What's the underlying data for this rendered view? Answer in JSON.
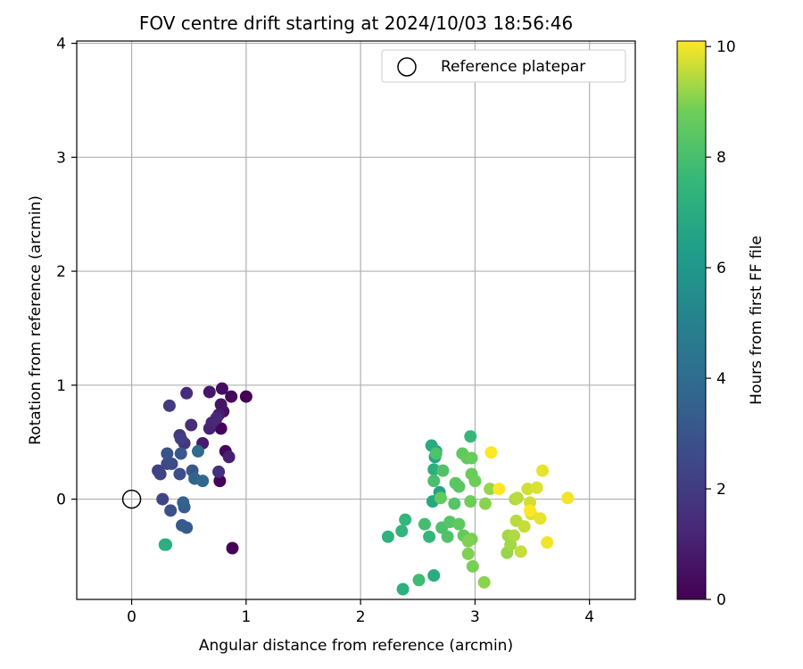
{
  "chart_data": {
    "type": "scatter",
    "title": "FOV centre drift starting at 2024/10/03 18:56:46",
    "xlabel": "Angular distance from reference (arcmin)",
    "ylabel": "Rotation from reference (arcmin)",
    "xlim": [
      -0.48,
      4.4
    ],
    "ylim": [
      -0.88,
      4.02
    ],
    "xticks": [
      0,
      1,
      2,
      3,
      4
    ],
    "yticks": [
      0,
      1,
      2,
      3,
      4
    ],
    "grid": true,
    "legend": {
      "placement": "top-right",
      "entries": [
        "Reference platepar"
      ]
    },
    "reference_point": {
      "name": "Reference platepar",
      "x": 0,
      "y": 0
    },
    "colorbar": {
      "label": "Hours from first FF file",
      "colormap": "viridis",
      "range": [
        0,
        10.1
      ],
      "ticks": [
        0,
        2,
        4,
        6,
        8,
        10
      ]
    },
    "points": [
      {
        "x": 1.0,
        "y": 0.9,
        "h": 0.0
      },
      {
        "x": 0.88,
        "y": -0.43,
        "h": 0.05
      },
      {
        "x": 0.77,
        "y": 0.16,
        "h": 0.1
      },
      {
        "x": 0.78,
        "y": 0.62,
        "h": 0.15
      },
      {
        "x": 0.82,
        "y": 0.42,
        "h": 0.2
      },
      {
        "x": 0.87,
        "y": 0.9,
        "h": 0.25
      },
      {
        "x": 0.79,
        "y": 0.97,
        "h": 0.4
      },
      {
        "x": 0.8,
        "y": 0.77,
        "h": 0.5
      },
      {
        "x": 0.78,
        "y": 0.83,
        "h": 0.6
      },
      {
        "x": 0.68,
        "y": 0.94,
        "h": 0.7
      },
      {
        "x": 0.62,
        "y": 0.49,
        "h": 0.8
      },
      {
        "x": 0.76,
        "y": 0.74,
        "h": 0.9
      },
      {
        "x": 0.85,
        "y": 0.37,
        "h": 1.0
      },
      {
        "x": 0.68,
        "y": 0.62,
        "h": 1.1
      },
      {
        "x": 0.7,
        "y": 0.67,
        "h": 1.2
      },
      {
        "x": 0.74,
        "y": 0.71,
        "h": 1.3
      },
      {
        "x": 0.48,
        "y": 0.93,
        "h": 1.4
      },
      {
        "x": 0.52,
        "y": 0.65,
        "h": 1.5
      },
      {
        "x": 0.76,
        "y": 0.24,
        "h": 1.6
      },
      {
        "x": 0.46,
        "y": 0.49,
        "h": 1.8
      },
      {
        "x": 0.42,
        "y": 0.56,
        "h": 1.9
      },
      {
        "x": 0.33,
        "y": 0.82,
        "h": 2.0
      },
      {
        "x": 0.43,
        "y": 0.53,
        "h": 2.1
      },
      {
        "x": 0.23,
        "y": 0.25,
        "h": 2.2
      },
      {
        "x": 0.25,
        "y": 0.22,
        "h": 2.3
      },
      {
        "x": 0.27,
        "y": 0.0,
        "h": 2.4
      },
      {
        "x": 0.31,
        "y": 0.31,
        "h": 2.5
      },
      {
        "x": 0.35,
        "y": 0.31,
        "h": 2.6
      },
      {
        "x": 0.42,
        "y": 0.22,
        "h": 2.7
      },
      {
        "x": 0.34,
        "y": -0.1,
        "h": 2.8
      },
      {
        "x": 0.31,
        "y": 0.4,
        "h": 2.9
      },
      {
        "x": 0.53,
        "y": 0.25,
        "h": 3.0
      },
      {
        "x": 0.43,
        "y": 0.4,
        "h": 3.1
      },
      {
        "x": 0.44,
        "y": -0.23,
        "h": 3.2
      },
      {
        "x": 0.48,
        "y": -0.25,
        "h": 3.3
      },
      {
        "x": 0.46,
        "y": -0.07,
        "h": 3.4
      },
      {
        "x": 0.45,
        "y": -0.03,
        "h": 3.5
      },
      {
        "x": 0.55,
        "y": 0.18,
        "h": 3.6
      },
      {
        "x": 0.62,
        "y": 0.16,
        "h": 3.8
      },
      {
        "x": 0.58,
        "y": 0.42,
        "h": 4.0
      },
      {
        "x": 0.29,
        "y": -0.4,
        "h": 7.0
      },
      {
        "x": 0.3,
        "y": -0.4,
        "h": 7.1
      },
      {
        "x": 2.66,
        "y": 0.42,
        "h": 6.4
      },
      {
        "x": 2.69,
        "y": 0.06,
        "h": 6.5
      },
      {
        "x": 2.65,
        "y": 0.37,
        "h": 6.6
      },
      {
        "x": 2.62,
        "y": 0.47,
        "h": 6.9
      },
      {
        "x": 2.63,
        "y": -0.02,
        "h": 6.8
      },
      {
        "x": 2.64,
        "y": -0.67,
        "h": 7.0
      },
      {
        "x": 2.64,
        "y": 0.26,
        "h": 7.1
      },
      {
        "x": 2.37,
        "y": -0.79,
        "h": 7.2
      },
      {
        "x": 2.24,
        "y": -0.33,
        "h": 7.3
      },
      {
        "x": 2.36,
        "y": -0.28,
        "h": 7.4
      },
      {
        "x": 2.39,
        "y": -0.18,
        "h": 7.5
      },
      {
        "x": 2.6,
        "y": -0.33,
        "h": 7.5
      },
      {
        "x": 2.96,
        "y": 0.55,
        "h": 7.6
      },
      {
        "x": 2.51,
        "y": -0.71,
        "h": 7.8
      },
      {
        "x": 2.56,
        "y": -0.22,
        "h": 7.9
      },
      {
        "x": 2.64,
        "y": 0.16,
        "h": 8.0
      },
      {
        "x": 2.66,
        "y": 0.4,
        "h": 8.1
      },
      {
        "x": 2.71,
        "y": -0.25,
        "h": 8.1
      },
      {
        "x": 2.72,
        "y": 0.25,
        "h": 8.2
      },
      {
        "x": 2.76,
        "y": -0.33,
        "h": 8.2
      },
      {
        "x": 2.78,
        "y": -0.2,
        "h": 8.3
      },
      {
        "x": 2.82,
        "y": -0.04,
        "h": 8.3
      },
      {
        "x": 2.83,
        "y": 0.14,
        "h": 8.4
      },
      {
        "x": 2.86,
        "y": 0.11,
        "h": 8.4
      },
      {
        "x": 2.86,
        "y": -0.22,
        "h": 8.5
      },
      {
        "x": 2.89,
        "y": 0.4,
        "h": 8.5
      },
      {
        "x": 2.9,
        "y": -0.32,
        "h": 8.6
      },
      {
        "x": 2.93,
        "y": 0.36,
        "h": 8.6
      },
      {
        "x": 2.97,
        "y": 0.36,
        "h": 8.7
      },
      {
        "x": 2.97,
        "y": 0.22,
        "h": 8.7
      },
      {
        "x": 3.0,
        "y": 0.16,
        "h": 8.8
      },
      {
        "x": 2.96,
        "y": -0.02,
        "h": 8.8
      },
      {
        "x": 2.97,
        "y": -0.35,
        "h": 8.9
      },
      {
        "x": 2.98,
        "y": -0.59,
        "h": 8.9
      },
      {
        "x": 2.94,
        "y": -0.48,
        "h": 9.0
      },
      {
        "x": 2.94,
        "y": -0.37,
        "h": 9.0
      },
      {
        "x": 3.08,
        "y": -0.73,
        "h": 9.1
      },
      {
        "x": 3.09,
        "y": -0.04,
        "h": 9.1
      },
      {
        "x": 2.7,
        "y": 0.01,
        "h": 8.6
      },
      {
        "x": 3.13,
        "y": 0.09,
        "h": 9.2
      },
      {
        "x": 3.28,
        "y": -0.47,
        "h": 9.2
      },
      {
        "x": 3.29,
        "y": -0.32,
        "h": 9.3
      },
      {
        "x": 3.31,
        "y": -0.4,
        "h": 9.3
      },
      {
        "x": 3.34,
        "y": -0.32,
        "h": 9.4
      },
      {
        "x": 3.35,
        "y": 0.0,
        "h": 9.4
      },
      {
        "x": 3.36,
        "y": -0.19,
        "h": 9.5
      },
      {
        "x": 3.37,
        "y": 0.01,
        "h": 9.5
      },
      {
        "x": 3.4,
        "y": -0.46,
        "h": 9.6
      },
      {
        "x": 3.43,
        "y": -0.24,
        "h": 9.6
      },
      {
        "x": 3.46,
        "y": 0.09,
        "h": 9.7
      },
      {
        "x": 3.48,
        "y": -0.03,
        "h": 9.7
      },
      {
        "x": 3.49,
        "y": -0.13,
        "h": 9.8
      },
      {
        "x": 3.54,
        "y": 0.1,
        "h": 9.8
      },
      {
        "x": 3.57,
        "y": -0.17,
        "h": 9.9
      },
      {
        "x": 3.59,
        "y": 0.25,
        "h": 9.9
      },
      {
        "x": 3.63,
        "y": -0.38,
        "h": 10.0
      },
      {
        "x": 3.81,
        "y": 0.01,
        "h": 10.0
      },
      {
        "x": 3.14,
        "y": 0.41,
        "h": 10.1
      },
      {
        "x": 3.21,
        "y": 0.09,
        "h": 10.1
      },
      {
        "x": 3.48,
        "y": -0.1,
        "h": 10.1
      }
    ]
  }
}
